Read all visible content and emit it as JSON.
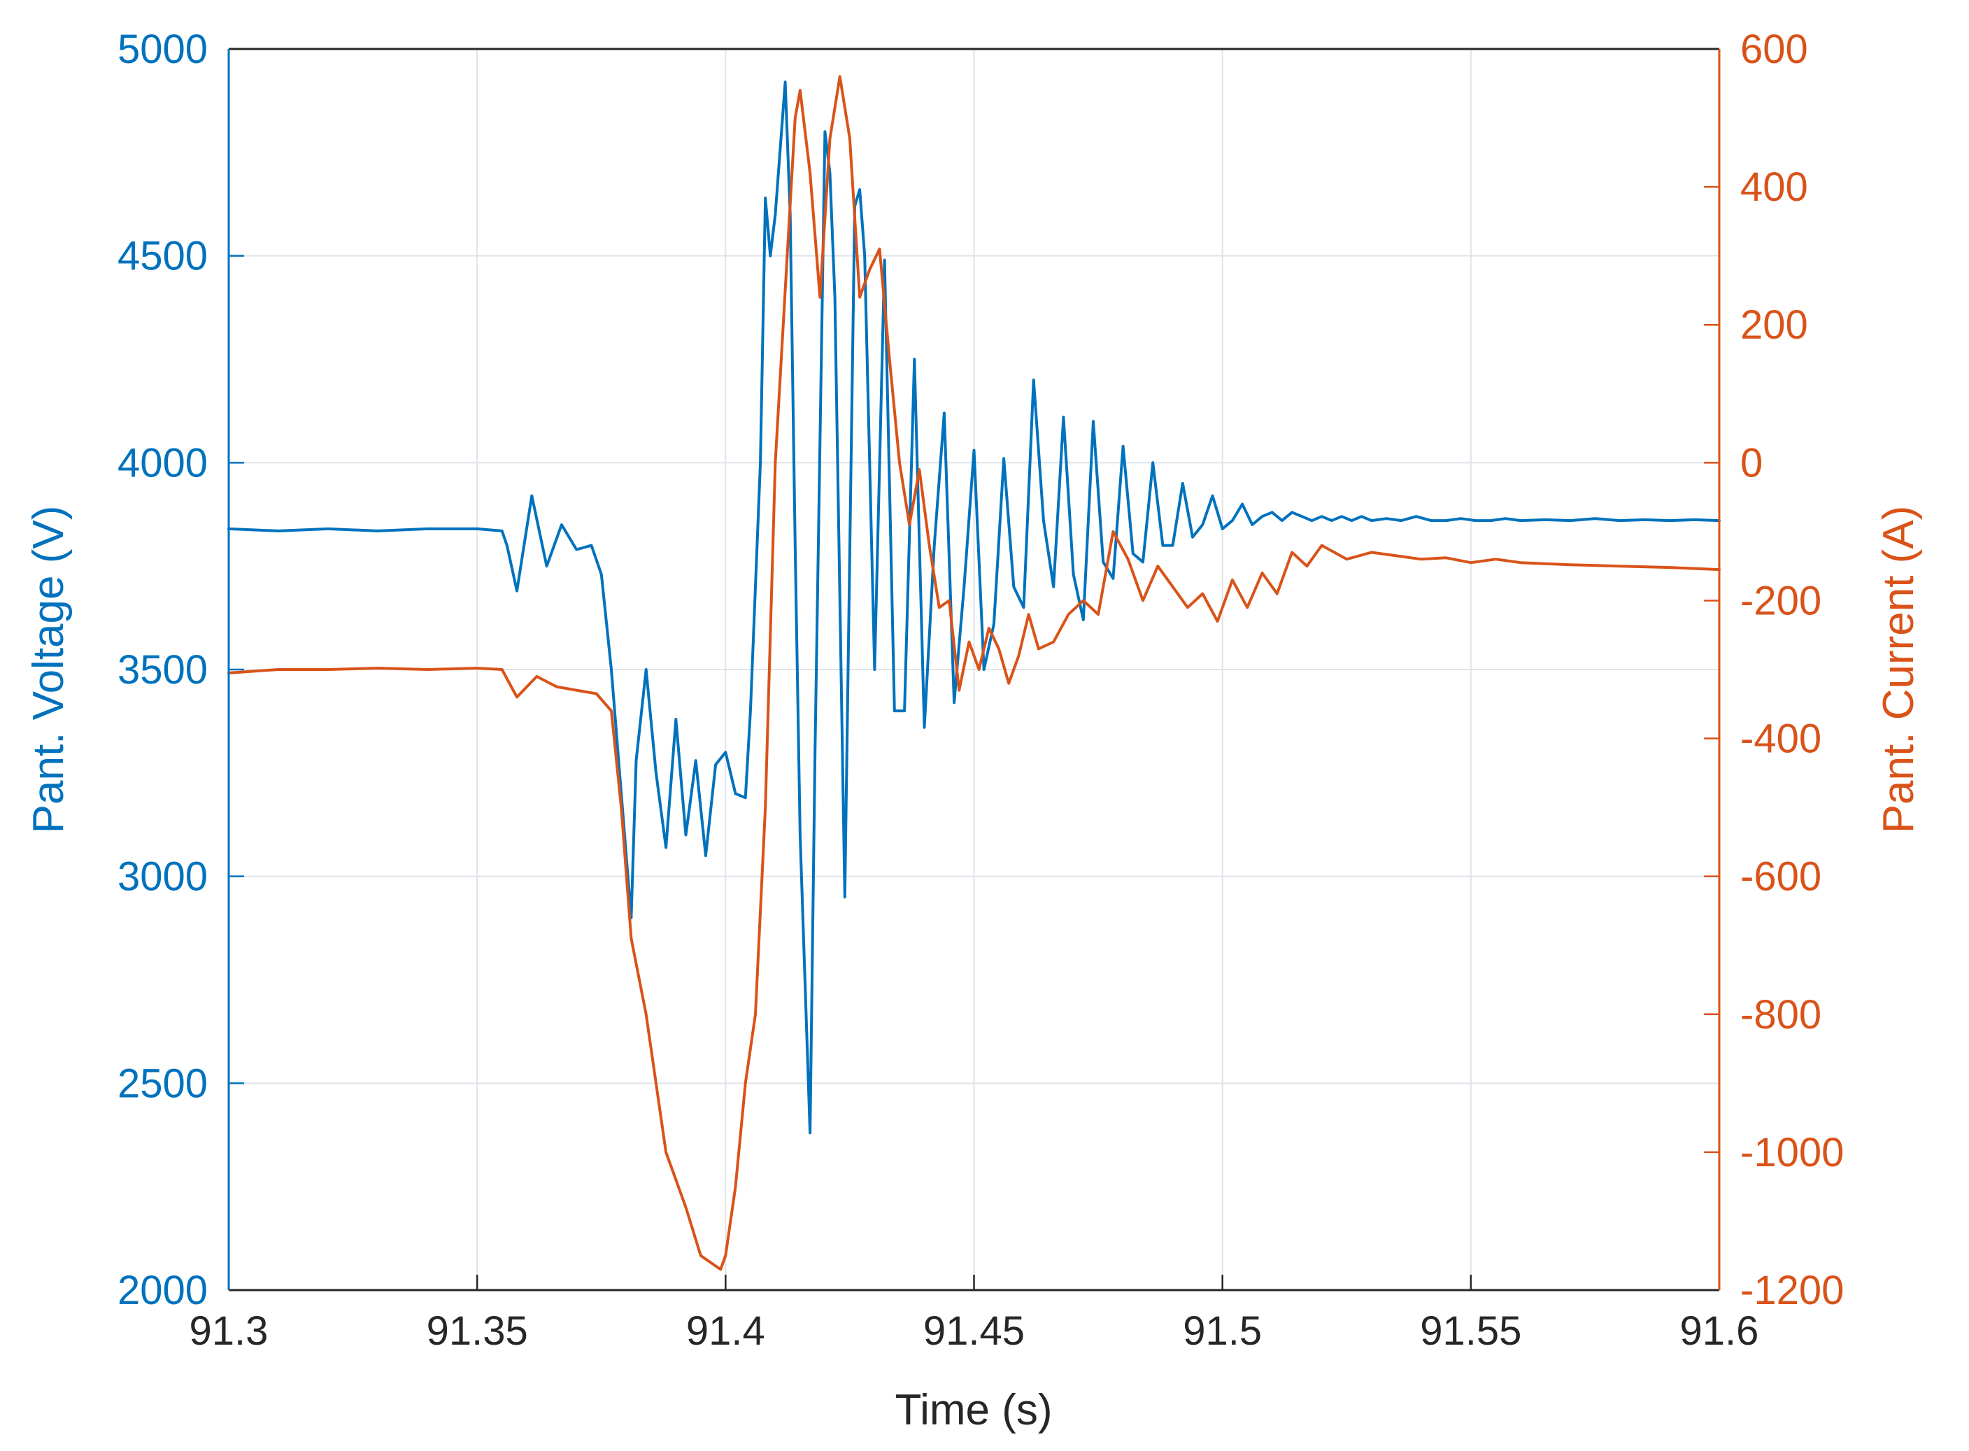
{
  "chart_data": {
    "type": "line",
    "title": "",
    "xlabel": "Time (s)",
    "ylabel_left": "Pant. Voltage (V)",
    "ylabel_right": "Pant. Current (A)",
    "xlim": [
      91.3,
      91.6
    ],
    "ylim_left": [
      2000,
      5000
    ],
    "ylim_right": [
      -1200,
      600
    ],
    "x_ticks": [
      "91.3",
      "91.35",
      "91.4",
      "91.45",
      "91.5",
      "91.55",
      "91.6"
    ],
    "y_left_ticks": [
      "2000",
      "2500",
      "3000",
      "3500",
      "4000",
      "4500",
      "5000"
    ],
    "y_right_ticks": [
      "-1200",
      "-1000",
      "-800",
      "-600",
      "-400",
      "-200",
      "0",
      "200",
      "400",
      "600"
    ],
    "grid": true,
    "legend": "none",
    "colors": {
      "voltage": "#0072BD",
      "current": "#D95319",
      "axis": "#262626",
      "grid": "#dfe4ea"
    },
    "series": [
      {
        "axis": "left",
        "color": "#0072BD",
        "x": [
          91.3,
          91.31,
          91.32,
          91.33,
          91.34,
          91.35,
          91.355,
          91.356,
          91.358,
          91.361,
          91.364,
          91.367,
          91.37,
          91.373,
          91.375,
          91.377,
          91.379,
          91.381,
          91.382,
          91.384,
          91.386,
          91.388,
          91.39,
          91.392,
          91.394,
          91.396,
          91.398,
          91.4,
          91.402,
          91.404,
          91.405,
          91.406,
          91.407,
          91.408,
          91.409,
          91.41,
          91.412,
          91.413,
          91.414,
          91.415,
          91.417,
          91.418,
          91.42,
          91.421,
          91.422,
          91.424,
          91.426,
          91.427,
          91.428,
          91.43,
          91.432,
          91.434,
          91.436,
          91.438,
          91.44,
          91.442,
          91.444,
          91.446,
          91.448,
          91.45,
          91.452,
          91.454,
          91.456,
          91.458,
          91.46,
          91.462,
          91.464,
          91.466,
          91.468,
          91.47,
          91.472,
          91.474,
          91.476,
          91.478,
          91.48,
          91.482,
          91.484,
          91.486,
          91.488,
          91.49,
          91.492,
          91.494,
          91.496,
          91.498,
          91.5,
          91.502,
          91.504,
          91.506,
          91.508,
          91.51,
          91.512,
          91.514,
          91.516,
          91.518,
          91.52,
          91.522,
          91.524,
          91.526,
          91.528,
          91.53,
          91.533,
          91.536,
          91.539,
          91.542,
          91.545,
          91.548,
          91.551,
          91.554,
          91.557,
          91.56,
          91.565,
          91.57,
          91.575,
          91.58,
          91.585,
          91.59,
          91.595,
          91.6
        ],
        "values": [
          3840,
          3835,
          3840,
          3835,
          3840,
          3840,
          3835,
          3800,
          3690,
          3920,
          3750,
          3850,
          3790,
          3800,
          3730,
          3500,
          3200,
          2900,
          3280,
          3500,
          3250,
          3070,
          3380,
          3100,
          3280,
          3050,
          3270,
          3300,
          3200,
          3190,
          3400,
          3700,
          4000,
          4640,
          4500,
          4600,
          4920,
          4600,
          3800,
          3100,
          2380,
          3300,
          4800,
          4700,
          4400,
          2950,
          4620,
          4660,
          4500,
          3500,
          4490,
          3400,
          3400,
          4250,
          3360,
          3800,
          4120,
          3420,
          3700,
          4030,
          3500,
          3610,
          4010,
          3700,
          3650,
          4200,
          3860,
          3700,
          4110,
          3730,
          3620,
          4100,
          3760,
          3720,
          4040,
          3780,
          3760,
          4000,
          3800,
          3800,
          3950,
          3820,
          3850,
          3920,
          3840,
          3860,
          3900,
          3850,
          3870,
          3880,
          3860,
          3880,
          3870,
          3860,
          3870,
          3860,
          3870,
          3860,
          3870,
          3860,
          3865,
          3860,
          3870,
          3860,
          3860,
          3865,
          3860,
          3860,
          3865,
          3860,
          3862,
          3860,
          3865,
          3860,
          3862,
          3860,
          3862,
          3860
        ]
      },
      {
        "axis": "right",
        "color": "#D95319",
        "x": [
          91.3,
          91.31,
          91.32,
          91.33,
          91.34,
          91.35,
          91.355,
          91.358,
          91.362,
          91.366,
          91.37,
          91.374,
          91.377,
          91.379,
          91.381,
          91.384,
          91.388,
          91.392,
          91.395,
          91.397,
          91.399,
          91.4,
          91.402,
          91.404,
          91.406,
          91.408,
          91.41,
          91.412,
          91.414,
          91.415,
          91.417,
          91.419,
          91.421,
          91.423,
          91.425,
          91.427,
          91.429,
          91.431,
          91.433,
          91.435,
          91.437,
          91.439,
          91.441,
          91.443,
          91.445,
          91.447,
          91.449,
          91.451,
          91.453,
          91.455,
          91.457,
          91.459,
          91.461,
          91.463,
          91.466,
          91.469,
          91.472,
          91.475,
          91.478,
          91.481,
          91.484,
          91.487,
          91.49,
          91.493,
          91.496,
          91.499,
          91.502,
          91.505,
          91.508,
          91.511,
          91.514,
          91.517,
          91.52,
          91.525,
          91.53,
          91.535,
          91.54,
          91.545,
          91.55,
          91.555,
          91.56,
          91.57,
          91.58,
          91.59,
          91.6
        ],
        "values": [
          -305,
          -300,
          -300,
          -298,
          -300,
          -298,
          -300,
          -340,
          -310,
          -325,
          -330,
          -335,
          -360,
          -500,
          -690,
          -800,
          -1000,
          -1080,
          -1150,
          -1160,
          -1170,
          -1150,
          -1050,
          -900,
          -800,
          -500,
          0,
          250,
          500,
          540,
          420,
          240,
          470,
          560,
          470,
          240,
          280,
          310,
          150,
          0,
          -90,
          -10,
          -120,
          -210,
          -200,
          -330,
          -260,
          -300,
          -240,
          -270,
          -320,
          -280,
          -220,
          -270,
          -260,
          -220,
          -200,
          -220,
          -100,
          -140,
          -200,
          -150,
          -180,
          -210,
          -190,
          -230,
          -170,
          -210,
          -160,
          -190,
          -130,
          -150,
          -120,
          -140,
          -130,
          -135,
          -140,
          -138,
          -145,
          -140,
          -145,
          -148,
          -150,
          -152,
          -155
        ]
      }
    ]
  }
}
